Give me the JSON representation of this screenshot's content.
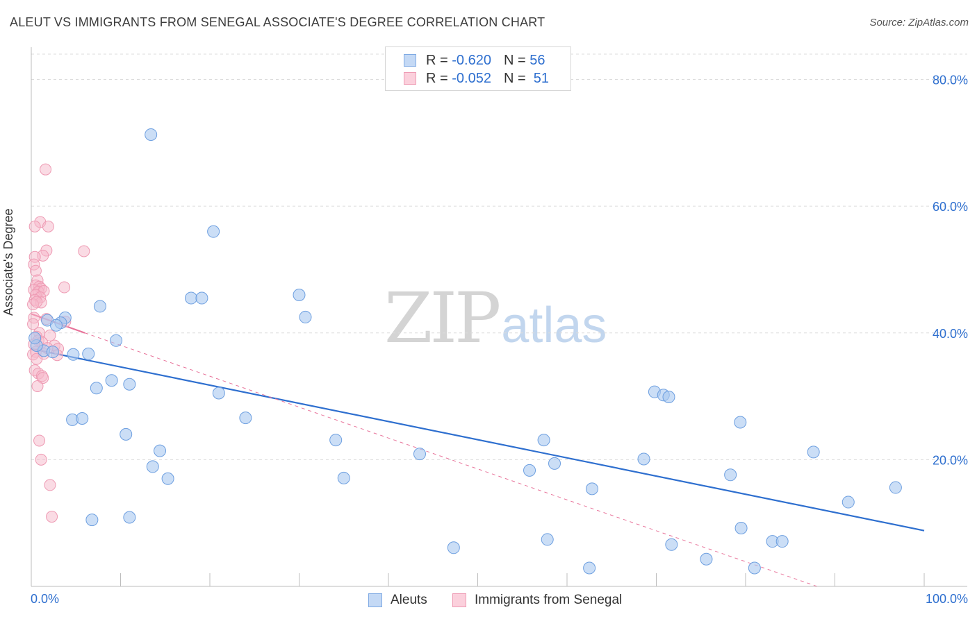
{
  "title": "ALEUT VS IMMIGRANTS FROM SENEGAL ASSOCIATE'S DEGREE CORRELATION CHART",
  "source": "Source: ZipAtlas.com",
  "watermark": {
    "part1": "ZIP",
    "part2": "atlas"
  },
  "legend": {
    "rows": [
      {
        "r_label": "R = ",
        "r_value": "-0.620",
        "n_label": "N = ",
        "n_value": "56",
        "color": "#a9c8f0"
      },
      {
        "r_label": "R = ",
        "r_value": "-0.052",
        "n_label": "N = ",
        "n_value": " 51",
        "color": "#f5b8c9"
      }
    ]
  },
  "chart_data": {
    "type": "scatter",
    "title": "ALEUT VS IMMIGRANTS FROM SENEGAL ASSOCIATE'S DEGREE CORRELATION CHART",
    "xlabel": "",
    "ylabel": "Associate's Degree",
    "xlim": [
      0,
      100
    ],
    "ylim": [
      0,
      84
    ],
    "x_tick_labels": [
      "0.0%",
      "100.0%"
    ],
    "y_ticks": [
      20,
      40,
      60,
      80
    ],
    "y_tick_labels": [
      "20.0%",
      "40.0%",
      "60.0%",
      "80.0%"
    ],
    "grid": true,
    "legend_position": "bottom",
    "colors": {
      "aleuts": "#2e6fcf",
      "aleuts_fill": "#a9c8f0",
      "senegal": "#e8739a",
      "senegal_fill": "#f5b8c9",
      "tick_label": "#2e6fcf"
    },
    "series": [
      {
        "name": "Aleuts",
        "r": -0.62,
        "n": 56,
        "trend": {
          "x": [
            0,
            100
          ],
          "y": [
            37.5,
            8.8
          ]
        },
        "points": [
          [
            13.4,
            71.3
          ],
          [
            20.4,
            56.0
          ],
          [
            7.7,
            44.2
          ],
          [
            17.9,
            45.5
          ],
          [
            19.1,
            45.5
          ],
          [
            30.7,
            42.5
          ],
          [
            30.0,
            46.0
          ],
          [
            1.8,
            42.0
          ],
          [
            3.8,
            42.4
          ],
          [
            3.3,
            41.6
          ],
          [
            2.8,
            41.2
          ],
          [
            9.5,
            38.8
          ],
          [
            1.4,
            37.2
          ],
          [
            4.7,
            36.6
          ],
          [
            6.4,
            36.7
          ],
          [
            9.0,
            32.5
          ],
          [
            11.0,
            31.9
          ],
          [
            7.3,
            31.3
          ],
          [
            21.0,
            30.5
          ],
          [
            24.0,
            26.6
          ],
          [
            4.6,
            26.3
          ],
          [
            5.7,
            26.5
          ],
          [
            10.6,
            24.0
          ],
          [
            14.4,
            21.4
          ],
          [
            34.1,
            23.1
          ],
          [
            43.5,
            20.9
          ],
          [
            13.6,
            18.9
          ],
          [
            15.3,
            17.0
          ],
          [
            35.0,
            17.1
          ],
          [
            11.0,
            10.9
          ],
          [
            6.8,
            10.5
          ],
          [
            55.8,
            18.3
          ],
          [
            57.4,
            23.1
          ],
          [
            58.6,
            19.4
          ],
          [
            62.8,
            15.4
          ],
          [
            69.8,
            30.7
          ],
          [
            70.8,
            30.2
          ],
          [
            71.4,
            29.9
          ],
          [
            68.6,
            20.1
          ],
          [
            79.4,
            25.9
          ],
          [
            78.3,
            17.6
          ],
          [
            87.6,
            21.2
          ],
          [
            91.5,
            13.3
          ],
          [
            96.8,
            15.6
          ],
          [
            79.5,
            9.2
          ],
          [
            83.0,
            7.1
          ],
          [
            84.1,
            7.1
          ],
          [
            71.7,
            6.6
          ],
          [
            75.6,
            4.3
          ],
          [
            81.0,
            2.9
          ],
          [
            62.5,
            2.9
          ],
          [
            57.8,
            7.4
          ],
          [
            47.3,
            6.1
          ],
          [
            0.6,
            38.0
          ],
          [
            0.4,
            39.2
          ],
          [
            2.4,
            37.0
          ]
        ]
      },
      {
        "name": "Immigrants from Senegal",
        "r": -0.052,
        "n": 51,
        "trend_solid": {
          "x": [
            0,
            6
          ],
          "y": [
            43,
            40
          ]
        },
        "trend_dashed": {
          "x": [
            6,
            88
          ],
          "y": [
            40,
            0
          ]
        },
        "points": [
          [
            1.6,
            65.8
          ],
          [
            1.0,
            57.5
          ],
          [
            0.4,
            56.8
          ],
          [
            1.9,
            56.8
          ],
          [
            1.7,
            53.0
          ],
          [
            5.9,
            52.9
          ],
          [
            1.3,
            52.2
          ],
          [
            0.4,
            52.0
          ],
          [
            0.3,
            50.8
          ],
          [
            0.5,
            49.8
          ],
          [
            0.7,
            48.3
          ],
          [
            3.7,
            47.2
          ],
          [
            0.5,
            47.5
          ],
          [
            0.9,
            47.3
          ],
          [
            1.1,
            47.0
          ],
          [
            0.3,
            46.8
          ],
          [
            0.8,
            46.5
          ],
          [
            1.4,
            46.6
          ],
          [
            0.5,
            46.0
          ],
          [
            1.0,
            45.6
          ],
          [
            0.4,
            45.2
          ],
          [
            1.1,
            44.8
          ],
          [
            0.2,
            44.5
          ],
          [
            0.6,
            44.9
          ],
          [
            0.3,
            42.4
          ],
          [
            1.7,
            42.2
          ],
          [
            3.8,
            41.8
          ],
          [
            0.2,
            41.4
          ],
          [
            0.9,
            40.0
          ],
          [
            0.6,
            39.4
          ],
          [
            2.1,
            39.6
          ],
          [
            0.8,
            38.8
          ],
          [
            1.2,
            38.5
          ],
          [
            2.6,
            38.0
          ],
          [
            3.0,
            37.5
          ],
          [
            0.5,
            37.0
          ],
          [
            0.2,
            36.6
          ],
          [
            1.4,
            36.7
          ],
          [
            0.6,
            35.9
          ],
          [
            2.9,
            36.5
          ],
          [
            0.4,
            34.1
          ],
          [
            0.8,
            33.6
          ],
          [
            1.2,
            33.2
          ],
          [
            1.3,
            32.9
          ],
          [
            0.7,
            31.6
          ],
          [
            0.9,
            23.0
          ],
          [
            1.1,
            20.0
          ],
          [
            2.1,
            16.0
          ],
          [
            2.3,
            11.0
          ],
          [
            0.3,
            38.2
          ],
          [
            1.8,
            37.6
          ]
        ]
      }
    ]
  }
}
